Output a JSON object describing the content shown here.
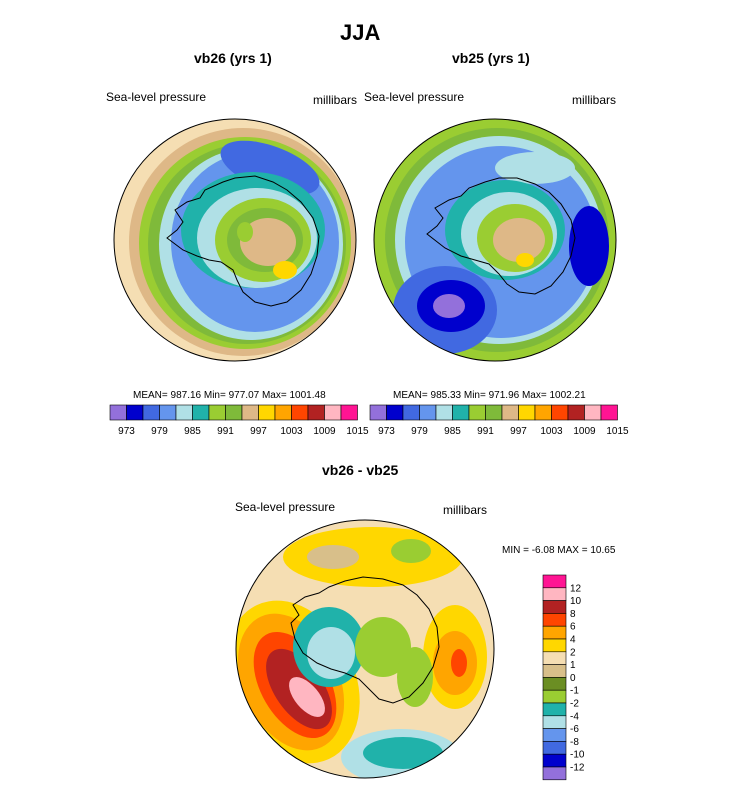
{
  "main_title": "JJA",
  "colors": [
    "#9370db",
    "#0000cd",
    "#4169e1",
    "#6495ed",
    "#b0e0e6",
    "#20b2aa",
    "#9acd32",
    "#7fba3a",
    "#deb887",
    "#ffd700",
    "#ffa500",
    "#ff4500",
    "#b22222",
    "#ffb6c1",
    "#ff1493"
  ],
  "diff_colors": [
    "#9370db",
    "#0000cd",
    "#4169e1",
    "#6495ed",
    "#b0e0e6",
    "#20b2aa",
    "#9acd32",
    "#6b8e23",
    "#d8bf8a",
    "#f5deb3",
    "#ffd700",
    "#ffa500",
    "#ff4500",
    "#b22222",
    "#ffb6c1",
    "#ff1493"
  ],
  "panel_left": {
    "title": "vb26 (yrs 1)",
    "left_label": "Sea-level pressure",
    "right_label": "millibars",
    "stats": "MEAN= 987.16  Min= 977.07  Max= 1001.48",
    "ticks": [
      "973",
      "979",
      "985",
      "991",
      "997",
      "1003",
      "1009",
      "1015"
    ]
  },
  "panel_right": {
    "title": "vb25 (yrs 1)",
    "left_label": "Sea-level pressure",
    "right_label": "millibars",
    "stats": "MEAN= 985.33  Min= 971.96  Max= 1002.21",
    "ticks": [
      "973",
      "979",
      "985",
      "991",
      "997",
      "1003",
      "1009",
      "1015"
    ]
  },
  "panel_diff": {
    "title": "vb26 - vb25",
    "left_label": "Sea-level pressure",
    "right_label": "millibars",
    "stats": "MIN =  -6.08 MAX =  10.65",
    "ticks": [
      "12",
      "10",
      "8",
      "6",
      "4",
      "2",
      "1",
      "0",
      "-1",
      "-2",
      "-4",
      "-6",
      "-8",
      "-10",
      "-12"
    ]
  },
  "chart_data": [
    {
      "type": "heatmap",
      "title": "vb26 (yrs 1)",
      "variable": "Sea-level pressure",
      "units": "millibars",
      "mean": 987.16,
      "min": 977.07,
      "max": 1001.48,
      "levels": [
        973,
        976,
        979,
        982,
        985,
        988,
        991,
        994,
        997,
        1000,
        1003,
        1006,
        1009,
        1012,
        1015
      ]
    },
    {
      "type": "heatmap",
      "title": "vb25 (yrs 1)",
      "variable": "Sea-level pressure",
      "units": "millibars",
      "mean": 985.33,
      "min": 971.96,
      "max": 1002.21,
      "levels": [
        973,
        976,
        979,
        982,
        985,
        988,
        991,
        994,
        997,
        1000,
        1003,
        1006,
        1009,
        1012,
        1015
      ]
    },
    {
      "type": "heatmap",
      "title": "vb26 - vb25",
      "variable": "Sea-level pressure",
      "units": "millibars",
      "min": -6.08,
      "max": 10.65,
      "levels": [
        -12,
        -10,
        -8,
        -6,
        -4,
        -2,
        -1,
        0,
        1,
        2,
        4,
        6,
        8,
        10,
        12
      ]
    }
  ]
}
